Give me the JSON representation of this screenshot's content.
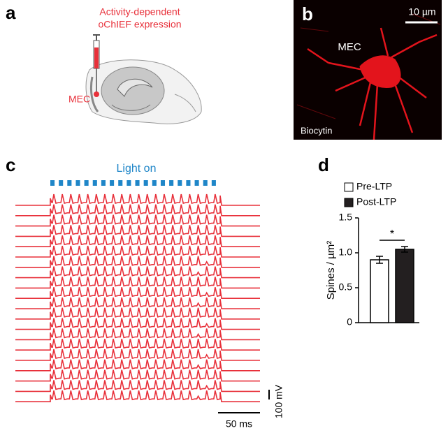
{
  "panel_a": {
    "label": "a",
    "caption_lines": [
      "Activity-dependent",
      "oChIEF expression"
    ],
    "region": "MEC"
  },
  "panel_b": {
    "label": "b",
    "scale_label": "10 µm",
    "region": "MEC",
    "stain": "Biocytin"
  },
  "panel_c": {
    "label": "c",
    "stimulus": "Light on",
    "voltage_scale": "100 mV",
    "time_scale": "50 ms"
  },
  "chart_data": {
    "type": "bar",
    "panel_label": "d",
    "ylabel": "Spines / µm²",
    "series": [
      {
        "name": "Pre-LTP",
        "color": "#ffffff",
        "values": [
          0.9
        ],
        "errors": [
          0.05
        ]
      },
      {
        "name": "Post-LTP",
        "color": "#231f20",
        "values": [
          1.05
        ],
        "errors": [
          0.04
        ]
      }
    ],
    "ylim": [
      0,
      1.5
    ],
    "yticks": [
      0,
      0.5,
      {
        "value": 1,
        "label": "1.0"
      },
      1.5
    ],
    "annotation": "*"
  }
}
